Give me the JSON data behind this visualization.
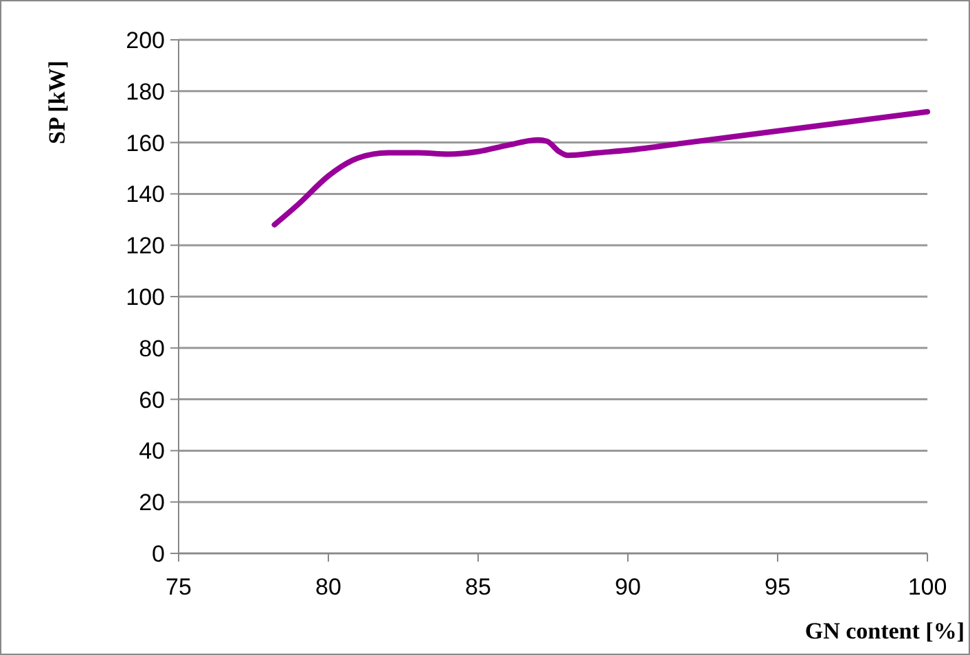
{
  "chart_data": {
    "type": "line",
    "xlabel": "GN content [%]",
    "ylabel": "SP [kW]",
    "x": [
      78.2,
      79,
      80,
      81,
      82,
      83,
      84,
      85,
      86,
      87,
      87.3,
      87.7,
      88,
      89,
      90,
      92,
      95,
      100
    ],
    "series": [
      {
        "color": "#990099",
        "values": [
          128,
          136,
          147,
          154,
          156,
          156,
          155.5,
          156.5,
          159,
          161,
          160.5,
          156.5,
          155,
          156,
          157,
          160,
          164.5,
          172
        ]
      }
    ],
    "xlim": [
      75,
      100
    ],
    "xticks": [
      75,
      80,
      85,
      90,
      95,
      100
    ],
    "ylim": [
      0,
      200
    ],
    "yticks": [
      0,
      20,
      40,
      60,
      80,
      100,
      120,
      140,
      160,
      180,
      200
    ],
    "grid": "y",
    "marker": "none",
    "line_style": "solid"
  }
}
